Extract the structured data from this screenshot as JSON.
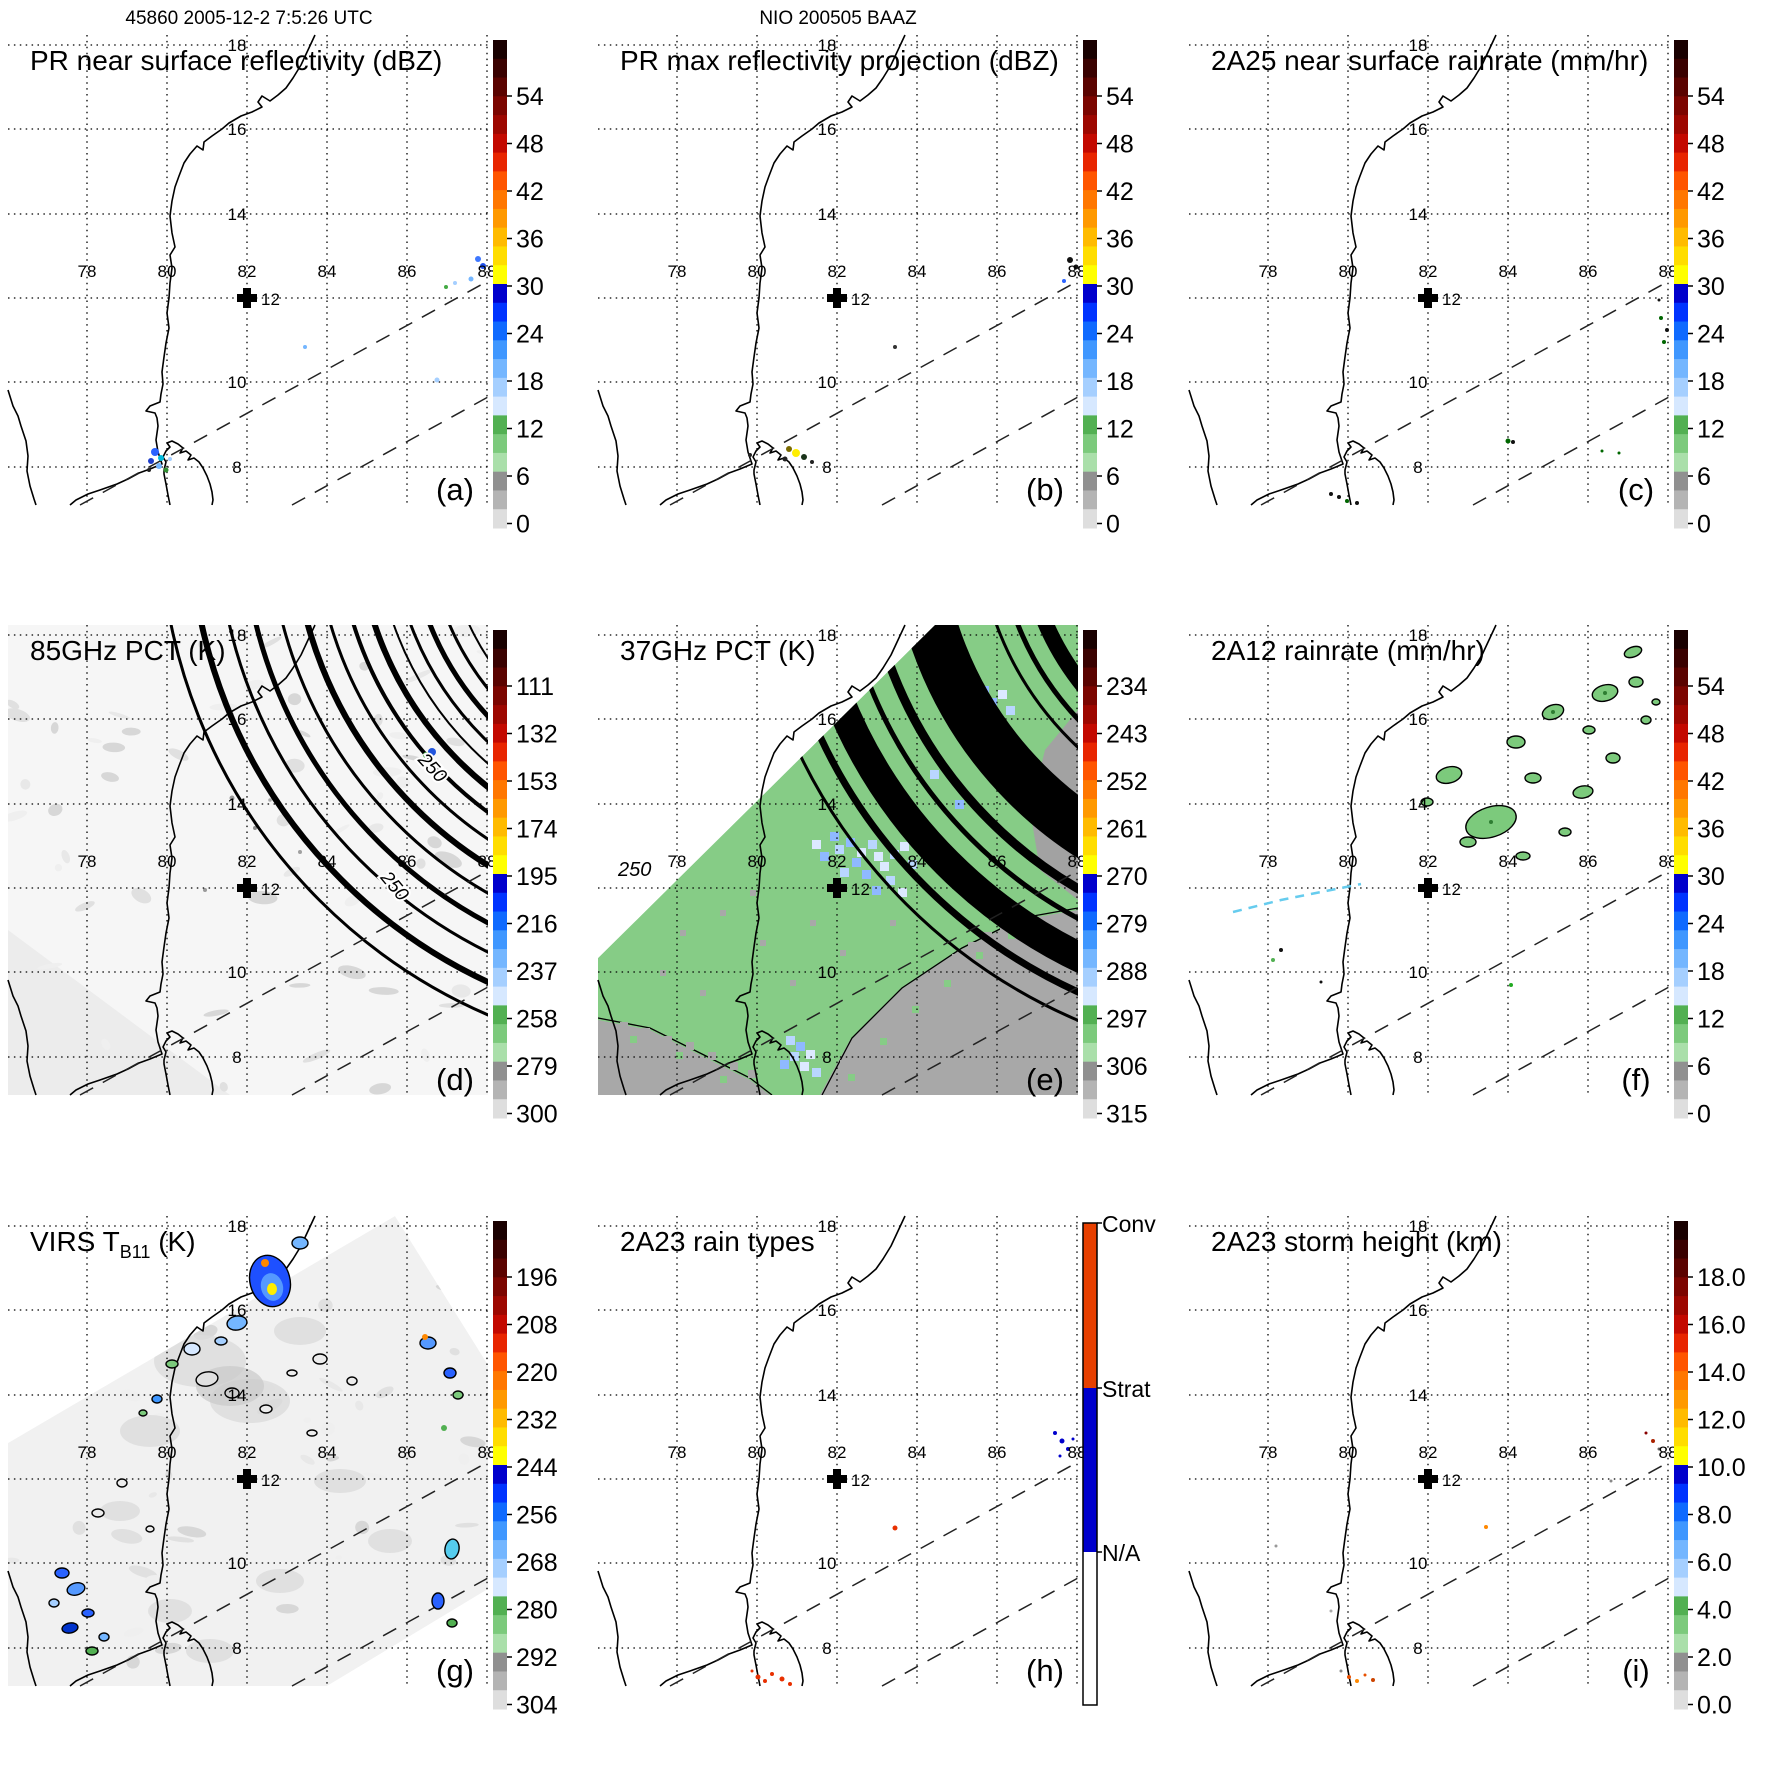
{
  "headers": {
    "orbit_time": "45860 2005-12-2 7:5:26 UTC",
    "region_id": "NIO 200505 BAAZ"
  },
  "map_labels": {
    "lon": [
      "78",
      "80",
      "82",
      "84",
      "86",
      "88"
    ],
    "lat": [
      "18",
      "16",
      "14",
      "10",
      "8"
    ],
    "marker": "12"
  },
  "panels": [
    {
      "id": "a",
      "letter": "(a)",
      "title": "PR near surface reflectivity (dBZ)",
      "colorbar_type": "spectrum",
      "ticks": [
        "54",
        "48",
        "42",
        "36",
        "30",
        "24",
        "18",
        "12",
        "6",
        "0"
      ]
    },
    {
      "id": "b",
      "letter": "(b)",
      "title": "PR max reflectivity projection (dBZ)",
      "colorbar_type": "spectrum",
      "ticks": [
        "54",
        "48",
        "42",
        "36",
        "30",
        "24",
        "18",
        "12",
        "6",
        "0"
      ]
    },
    {
      "id": "c",
      "letter": "(c)",
      "title": "2A25 near surface rainrate (mm/hr)",
      "colorbar_type": "spectrum",
      "ticks": [
        "54",
        "48",
        "42",
        "36",
        "30",
        "24",
        "18",
        "12",
        "6",
        "0"
      ]
    },
    {
      "id": "d",
      "letter": "(d)",
      "title": "85GHz PCT (K)",
      "colorbar_type": "spectrum",
      "ticks": [
        "111",
        "132",
        "153",
        "174",
        "195",
        "216",
        "237",
        "258",
        "279",
        "300"
      ],
      "contour_labels": [
        "250",
        "250"
      ]
    },
    {
      "id": "e",
      "letter": "(e)",
      "title": "37GHz PCT (K)",
      "colorbar_type": "spectrum",
      "ticks": [
        "234",
        "243",
        "252",
        "261",
        "270",
        "279",
        "288",
        "297",
        "306",
        "315"
      ],
      "contour_labels": [
        "250"
      ]
    },
    {
      "id": "f",
      "letter": "(f)",
      "title": "2A12 rainrate (mm/hr)",
      "colorbar_type": "spectrum",
      "ticks": [
        "54",
        "48",
        "42",
        "36",
        "30",
        "24",
        "18",
        "12",
        "6",
        "0"
      ]
    },
    {
      "id": "g",
      "letter": "(g)",
      "title_pre": "VIRS T",
      "title_sub": "B11",
      "title_post": " (K)",
      "colorbar_type": "spectrum",
      "ticks": [
        "196",
        "208",
        "220",
        "232",
        "244",
        "256",
        "268",
        "280",
        "292",
        "304"
      ]
    },
    {
      "id": "h",
      "letter": "(h)",
      "title": "2A23 rain types",
      "colorbar_type": "raintype",
      "ticks": [
        "Conv",
        "Strat",
        "N/A"
      ]
    },
    {
      "id": "i",
      "letter": "(i)",
      "title": "2A23 storm height (km)",
      "colorbar_type": "spectrum",
      "ticks": [
        "18.0",
        "16.0",
        "14.0",
        "12.0",
        "10.0",
        "8.0",
        "6.0",
        "4.0",
        "2.0",
        "0.0"
      ]
    }
  ],
  "colors": {
    "spectrum": [
      "#190000",
      "#3a0100",
      "#5b0300",
      "#7c0500",
      "#9d0700",
      "#c30900",
      "#e82500",
      "#ff5500",
      "#ff7700",
      "#ff9900",
      "#ffbb00",
      "#ffdd00",
      "#ffff00",
      "#0000cc",
      "#0033ff",
      "#0f6aff",
      "#3f97ff",
      "#74b6ff",
      "#a5cfff",
      "#d6e8ff",
      "#52b052",
      "#7cca7c",
      "#aadfaa",
      "#909090",
      "#b4b4b4",
      "#dedede"
    ],
    "raintype": {
      "conv": "#e84000",
      "strat": "#0000cc",
      "na": "#ffffff"
    }
  },
  "chart_data": [
    {
      "panel": "a",
      "type": "heatmap",
      "title": "PR near surface reflectivity (dBZ)",
      "units": "dBZ",
      "colorbar_ticks": [
        54,
        48,
        42,
        36,
        30,
        24,
        18,
        12,
        6,
        0
      ],
      "extent": {
        "lon": [
          76.0,
          88.1
        ],
        "lat": [
          7.1,
          18.1
        ]
      },
      "marker": {
        "lon": 82,
        "lat": 12
      },
      "grid": {
        "lon": [
          78,
          80,
          82,
          84,
          86,
          88
        ],
        "lat": [
          8,
          10,
          12,
          14,
          16,
          18
        ]
      },
      "notes": "sparse weak echoes (18-30 dBZ) near southern Sri Lanka and near 88E 12N inside dashed PR swath"
    },
    {
      "panel": "b",
      "type": "heatmap",
      "title": "PR max reflectivity projection (dBZ)",
      "units": "dBZ",
      "colorbar_ticks": [
        54,
        48,
        42,
        36,
        30,
        24,
        18,
        12,
        6,
        0
      ],
      "extent": {
        "lon": [
          76.0,
          88.1
        ],
        "lat": [
          7.1,
          18.1
        ]
      },
      "marker": {
        "lon": 82,
        "lat": 12
      },
      "notes": "small cells near southern Sri Lanka, one reaching ~36 dBZ (yellow), few dark specks near 88E 12N"
    },
    {
      "panel": "c",
      "type": "heatmap",
      "title": "2A25 near surface rainrate (mm/hr)",
      "units": "mm/hr",
      "colorbar_ticks": [
        54,
        48,
        42,
        36,
        30,
        24,
        18,
        12,
        6,
        0
      ],
      "extent": {
        "lon": [
          76.0,
          88.1
        ],
        "lat": [
          7.1,
          18.1
        ]
      },
      "marker": {
        "lon": 82,
        "lat": 12
      },
      "notes": "very light rain specks (<6 mm/hr) south of Sri Lanka, east of Sri Lanka and near 88E 11-12N"
    },
    {
      "panel": "d",
      "type": "heatmap",
      "title": "85GHz PCT (K)",
      "units": "K",
      "colorbar_ticks": [
        111,
        132,
        153,
        174,
        195,
        216,
        237,
        258,
        279,
        300
      ],
      "extent": {
        "lon": [
          76.0,
          88.1
        ],
        "lat": [
          7.1,
          18.1
        ]
      },
      "marker": {
        "lon": 82,
        "lat": 12
      },
      "contour_labels": [
        250
      ],
      "notes": "TMI swath mostly 258-300 K (near white); dense black 250-K contour arcs in northeast corner"
    },
    {
      "panel": "e",
      "type": "heatmap",
      "title": "37GHz PCT (K)",
      "units": "K",
      "colorbar_ticks": [
        234,
        243,
        252,
        261,
        270,
        279,
        288,
        297,
        306,
        315
      ],
      "extent": {
        "lon": [
          76.0,
          88.1
        ],
        "lat": [
          7.1,
          18.1
        ]
      },
      "marker": {
        "lon": 82,
        "lat": 12
      },
      "contour_labels": [
        250
      ],
      "notes": "swath filled ~283-291 K (green) over ocean, ~295-305 K (gray) near/over land, light-blue 270-280 K patches; black contour bands in northeast corner"
    },
    {
      "panel": "f",
      "type": "heatmap",
      "title": "2A12 rainrate (mm/hr)",
      "units": "mm/hr",
      "colorbar_ticks": [
        54,
        48,
        42,
        36,
        30,
        24,
        18,
        12,
        6,
        0
      ],
      "extent": {
        "lon": [
          76.0,
          88.1
        ],
        "lat": [
          7.1,
          18.1
        ]
      },
      "marker": {
        "lon": 82,
        "lat": 12
      },
      "notes": "cluster of light (~3-6 mm/hr) green outlined rain cells between 83-88E, 10-13N; cyan dashed segment near 77-79E 10N"
    },
    {
      "panel": "g",
      "type": "heatmap",
      "title": "VIRS TB11 (K)",
      "units": "K",
      "colorbar_ticks": [
        196,
        208,
        220,
        232,
        244,
        256,
        268,
        280,
        292,
        304
      ],
      "extent": {
        "lon": [
          76.0,
          88.1
        ],
        "lat": [
          7.1,
          18.1
        ]
      },
      "marker": {
        "lon": 82,
        "lat": 12
      },
      "notes": "gray 280-304 K cloud field; cold cloud clusters 220-256 K (blue/cyan) with one ~208-220 K (orange/yellow) core near 83-84E 16-17N; smaller cold cells along coast and southwest"
    },
    {
      "panel": "h",
      "type": "heatmap",
      "title": "2A23 rain types",
      "units": "category",
      "categories": [
        "Conv",
        "Strat",
        "N/A"
      ],
      "extent": {
        "lon": [
          76.0,
          88.1
        ],
        "lat": [
          7.1,
          18.1
        ]
      },
      "marker": {
        "lon": 82,
        "lat": 12
      },
      "notes": "few convective (red) pixels over/south of Sri Lanka and at ~84E 10N; few stratiform (blue) pixels near 88E 12N"
    },
    {
      "panel": "i",
      "type": "heatmap",
      "title": "2A23 storm height (km)",
      "units": "km",
      "colorbar_ticks": [
        18.0,
        16.0,
        14.0,
        12.0,
        10.0,
        8.0,
        6.0,
        4.0,
        2.0,
        0.0
      ],
      "extent": {
        "lon": [
          76.0,
          88.1
        ],
        "lat": [
          7.1,
          18.1
        ]
      },
      "marker": {
        "lon": 82,
        "lat": 12
      },
      "notes": "scattered 3-6 km storm-height specks south of Sri Lanka and near 88E 12N"
    }
  ]
}
